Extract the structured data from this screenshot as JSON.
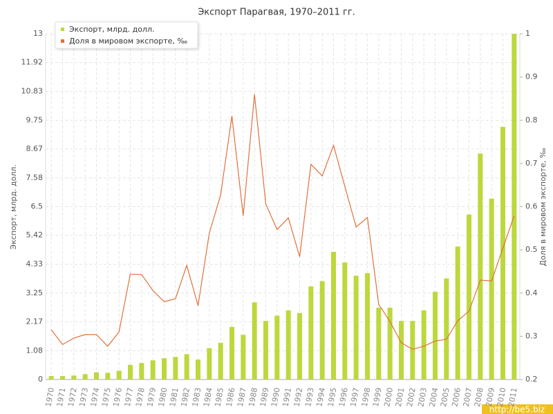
{
  "chart_data": {
    "type": "bar",
    "title": "Экспорт Парагвая, 1970–2011 гг.",
    "y_label": "Экспорт, млрд. долл.",
    "y2_label": "Доля в мировом экспорте, ‰",
    "watermark": "http://be5.biz",
    "categories": [
      "1970",
      "1971",
      "1972",
      "1973",
      "1974",
      "1975",
      "1976",
      "1977",
      "1978",
      "1979",
      "1980",
      "1981",
      "1982",
      "1983",
      "1984",
      "1985",
      "1986",
      "1987",
      "1988",
      "1989",
      "1990",
      "1991",
      "1992",
      "1993",
      "1994",
      "1995",
      "1996",
      "1997",
      "1998",
      "1999",
      "2000",
      "2001",
      "2002",
      "2003",
      "2004",
      "2005",
      "2006",
      "2007",
      "2008",
      "2009",
      "2010",
      "2011"
    ],
    "series": [
      {
        "name": "Экспорт, млрд. долл.",
        "type": "bar",
        "color": "#bcd83c",
        "values": [
          0.13,
          0.13,
          0.15,
          0.2,
          0.27,
          0.25,
          0.33,
          0.55,
          0.62,
          0.72,
          0.8,
          0.85,
          0.95,
          0.75,
          1.18,
          1.38,
          1.98,
          1.68,
          2.9,
          2.2,
          2.4,
          2.6,
          2.5,
          3.5,
          3.7,
          4.8,
          4.4,
          3.9,
          4.0,
          2.7,
          2.7,
          2.2,
          2.2,
          2.6,
          3.3,
          3.8,
          5.0,
          6.2,
          8.5,
          6.8,
          9.5,
          13
        ]
      },
      {
        "name": "Доля в мировом экспорте, ‰",
        "type": "line",
        "axis": "y2",
        "color": "#e0703a",
        "values": [
          0.315,
          0.281,
          0.296,
          0.304,
          0.304,
          0.277,
          0.31,
          0.444,
          0.443,
          0.406,
          0.38,
          0.387,
          0.464,
          0.371,
          0.539,
          0.627,
          0.81,
          0.579,
          0.86,
          0.606,
          0.547,
          0.574,
          0.484,
          0.698,
          0.671,
          0.742,
          0.647,
          0.553,
          0.575,
          0.374,
          0.334,
          0.285,
          0.27,
          0.277,
          0.289,
          0.293,
          0.336,
          0.358,
          0.43,
          0.428,
          0.504,
          0.579
        ]
      }
    ],
    "ylim": [
      0,
      13
    ],
    "yticks": [
      0,
      1.08,
      2.17,
      3.25,
      4.33,
      5.42,
      6.5,
      7.58,
      8.67,
      9.75,
      10.83,
      11.92,
      13
    ],
    "y2lim": [
      0.2,
      1
    ],
    "y2ticks": [
      0.2,
      0.3,
      0.4,
      0.5,
      0.6,
      0.7,
      0.8,
      0.9,
      1
    ],
    "grid": true,
    "legend": "top-left"
  }
}
